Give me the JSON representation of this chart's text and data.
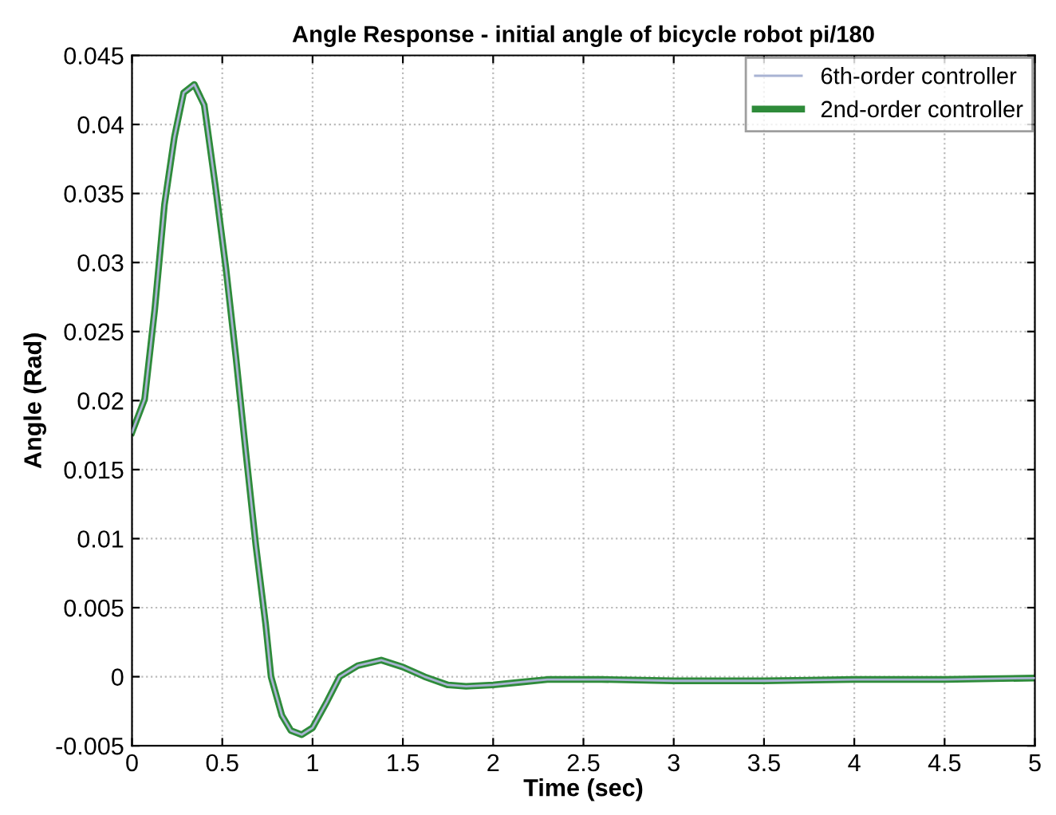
{
  "chart_data": {
    "type": "line",
    "title": "Angle Response - initial angle of bicycle robot pi/180",
    "xlabel": "Time (sec)",
    "ylabel": "Angle (Rad)",
    "x": [
      0,
      0.07,
      0.126,
      0.18,
      0.235,
      0.286,
      0.345,
      0.4,
      0.46,
      0.52,
      0.575,
      0.63,
      0.686,
      0.74,
      0.77,
      0.83,
      0.88,
      0.94,
      1.0,
      1.08,
      1.15,
      1.25,
      1.38,
      1.5,
      1.62,
      1.75,
      1.85,
      2.0,
      2.15,
      2.3,
      2.6,
      3.0,
      3.5,
      4.0,
      4.5,
      5.0
    ],
    "series": [
      {
        "name": "6th-order controller",
        "color": "#a9b3d3",
        "values": [
          0.0177,
          0.0201,
          0.0266,
          0.0342,
          0.0391,
          0.0423,
          0.0429,
          0.0414,
          0.0357,
          0.0296,
          0.0232,
          0.0163,
          0.0095,
          0.0038,
          0.0,
          -0.0028,
          -0.0039,
          -0.0042,
          -0.0037,
          -0.0018,
          0.0,
          0.0008,
          0.0012,
          0.0007,
          0.0,
          -0.0006,
          -0.0007,
          -0.0006,
          -0.0004,
          -0.0002,
          -0.0002,
          -0.0003,
          -0.0003,
          -0.0002,
          -0.0002,
          -0.0001
        ]
      },
      {
        "name": "2nd-order controller",
        "color": "#2e8b3a",
        "values": [
          0.0177,
          0.0201,
          0.0266,
          0.0342,
          0.0391,
          0.0423,
          0.0429,
          0.0414,
          0.0357,
          0.0296,
          0.0232,
          0.0163,
          0.0095,
          0.0038,
          0.0,
          -0.0028,
          -0.0039,
          -0.0042,
          -0.0037,
          -0.0018,
          0.0,
          0.0008,
          0.0012,
          0.0007,
          0.0,
          -0.0006,
          -0.0007,
          -0.0006,
          -0.0004,
          -0.0002,
          -0.0002,
          -0.0003,
          -0.0003,
          -0.0002,
          -0.0002,
          -0.0001
        ]
      }
    ],
    "xlim": [
      0,
      5
    ],
    "xticks": [
      0,
      0.5,
      1,
      1.5,
      2,
      2.5,
      3,
      3.5,
      4,
      4.5,
      5
    ],
    "ylim": [
      -0.005,
      0.045
    ],
    "yticks": [
      -0.005,
      0,
      0.005,
      0.01,
      0.015,
      0.02,
      0.025,
      0.03,
      0.035,
      0.04,
      0.045
    ],
    "grid": true,
    "legend": "top right",
    "line_style": "solid",
    "marker": "none"
  }
}
